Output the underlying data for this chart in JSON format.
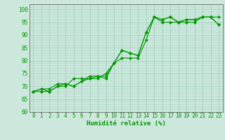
{
  "xlabel": "Humidité relative (%)",
  "ylabel": "",
  "background_color": "#cce8dc",
  "grid_color": "#99ccb8",
  "line_color": "#009900",
  "xlim": [
    -0.5,
    23.5
  ],
  "ylim": [
    60,
    102
  ],
  "yticks": [
    60,
    65,
    70,
    75,
    80,
    85,
    90,
    95,
    100
  ],
  "xticks": [
    0,
    1,
    2,
    3,
    4,
    5,
    6,
    7,
    8,
    9,
    10,
    11,
    12,
    13,
    14,
    15,
    16,
    17,
    18,
    19,
    20,
    21,
    22,
    23
  ],
  "series1": [
    68,
    69,
    68,
    70,
    71,
    70,
    72,
    73,
    74,
    73,
    79,
    84,
    83,
    82,
    91,
    97,
    96,
    97,
    95,
    96,
    96,
    97,
    97,
    97
  ],
  "series2": [
    68,
    69,
    69,
    71,
    71,
    70,
    72,
    74,
    74,
    74,
    79,
    84,
    83,
    82,
    91,
    97,
    96,
    97,
    95,
    96,
    96,
    97,
    97,
    94
  ],
  "series3": [
    68,
    68,
    68,
    70,
    70,
    73,
    73,
    73,
    73,
    75,
    79,
    81,
    81,
    81,
    88,
    97,
    95,
    95,
    95,
    95,
    95,
    97,
    97,
    94
  ],
  "marker": "D",
  "markersize": 2,
  "linewidth": 0.8,
  "tick_fontsize": 5.5,
  "xlabel_fontsize": 6.5
}
